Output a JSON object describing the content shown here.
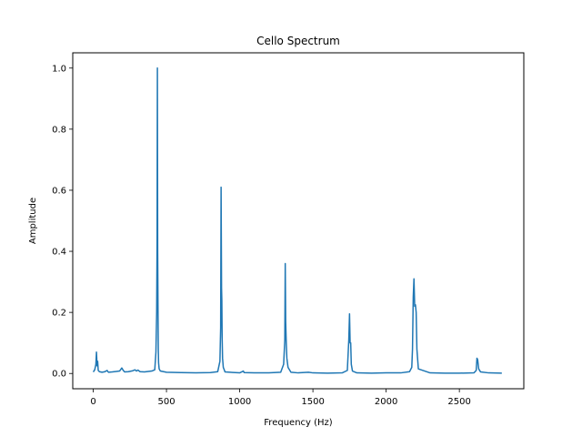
{
  "chart_data": {
    "type": "line",
    "title": "Cello Spectrum",
    "xlabel": "Frequency (Hz)",
    "ylabel": "Amplitude",
    "xlim": [
      -140,
      2940
    ],
    "ylim": [
      -0.05,
      1.05
    ],
    "xticks": [
      0,
      500,
      1000,
      1500,
      2000,
      2500
    ],
    "xtick_labels": [
      "0",
      "500",
      "1000",
      "1500",
      "2000",
      "2500"
    ],
    "yticks": [
      0.0,
      0.2,
      0.4,
      0.6,
      0.8,
      1.0
    ],
    "ytick_labels": [
      "0.0",
      "0.2",
      "0.4",
      "0.6",
      "0.8",
      "1.0"
    ],
    "grid": false,
    "line_color": "#1f77b4",
    "series": [
      {
        "x": [
          0,
          10,
          18,
          22,
          26,
          30,
          34,
          42,
          60,
          80,
          95,
          100,
          105,
          130,
          180,
          195,
          205,
          215,
          240,
          270,
          285,
          295,
          305,
          320,
          350,
          400,
          420,
          428,
          433,
          436,
          438,
          440,
          442,
          444,
          446,
          450,
          458,
          500,
          600,
          700,
          800,
          850,
          865,
          870,
          873,
          876,
          878,
          880,
          883,
          888,
          900,
          1000,
          1025,
          1030,
          1100,
          1200,
          1280,
          1300,
          1308,
          1311,
          1314,
          1318,
          1322,
          1330,
          1350,
          1400,
          1470,
          1500,
          1600,
          1700,
          1735,
          1745,
          1750,
          1754,
          1758,
          1762,
          1770,
          1800,
          1900,
          2000,
          2100,
          2160,
          2175,
          2180,
          2185,
          2190,
          2195,
          2200,
          2205,
          2210,
          2220,
          2300,
          2400,
          2500,
          2600,
          2615,
          2620,
          2625,
          2632,
          2645,
          2700,
          2790
        ],
        "y": [
          0.005,
          0.012,
          0.03,
          0.07,
          0.025,
          0.04,
          0.01,
          0.006,
          0.004,
          0.006,
          0.01,
          0.006,
          0.004,
          0.005,
          0.008,
          0.018,
          0.01,
          0.005,
          0.006,
          0.009,
          0.012,
          0.008,
          0.011,
          0.006,
          0.005,
          0.008,
          0.012,
          0.07,
          0.2,
          0.45,
          1.0,
          0.4,
          0.23,
          0.08,
          0.035,
          0.015,
          0.008,
          0.004,
          0.003,
          0.002,
          0.003,
          0.006,
          0.04,
          0.15,
          0.61,
          0.28,
          0.24,
          0.12,
          0.05,
          0.02,
          0.005,
          0.002,
          0.008,
          0.003,
          0.002,
          0.002,
          0.004,
          0.03,
          0.11,
          0.36,
          0.17,
          0.1,
          0.05,
          0.02,
          0.004,
          0.002,
          0.004,
          0.002,
          0.001,
          0.002,
          0.01,
          0.11,
          0.195,
          0.1,
          0.1,
          0.03,
          0.008,
          0.002,
          0.001,
          0.002,
          0.002,
          0.006,
          0.02,
          0.08,
          0.25,
          0.31,
          0.22,
          0.225,
          0.2,
          0.08,
          0.015,
          0.002,
          0.001,
          0.001,
          0.002,
          0.01,
          0.05,
          0.045,
          0.015,
          0.005,
          0.002,
          0.001
        ]
      }
    ]
  }
}
